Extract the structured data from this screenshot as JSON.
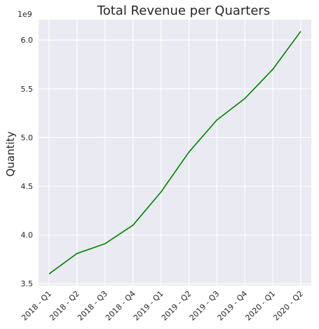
{
  "chart_data": {
    "type": "line",
    "title": "Total Revenue per Quarters",
    "xlabel": "",
    "ylabel": "Quantity",
    "y_offset_label": "1e9",
    "categories": [
      "2018 - Q1",
      "2018 - Q2",
      "2018 - Q3",
      "2018 - Q4",
      "2019 - Q1",
      "2019 - Q2",
      "2019 - Q3",
      "2019 - Q4",
      "2020 - Q1",
      "2020 - Q2"
    ],
    "series": [
      {
        "values": [
          3.6,
          3.81,
          3.91,
          4.1,
          4.44,
          4.85,
          5.18,
          5.4,
          5.7,
          6.09
        ],
        "color": "#008000"
      }
    ],
    "yticks": [
      "3.5",
      "4.0",
      "4.5",
      "5.0",
      "5.5",
      "6.0"
    ],
    "ylim": [
      3.48,
      6.21
    ],
    "grid": true,
    "background": "#eaeaf2",
    "grid_color": "#ffffff"
  }
}
